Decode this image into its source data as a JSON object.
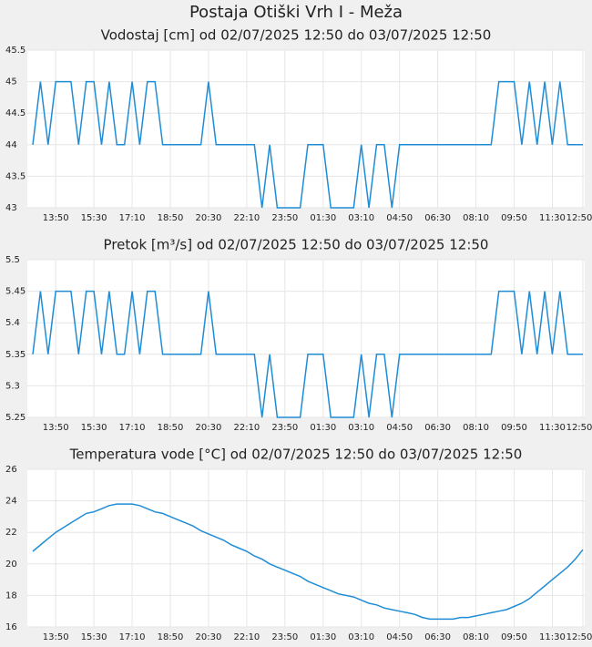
{
  "title": "Postaja Otiški Vrh I - Meža",
  "chart_data": [
    {
      "type": "line",
      "title": "Vodostaj [cm] od 02/07/2025 12:50 do 03/07/2025 12:50",
      "color": "#1f8dd6",
      "grid": true,
      "categories": [
        null,
        null,
        null,
        "13:50",
        null,
        null,
        null,
        null,
        "15:30",
        null,
        null,
        null,
        null,
        "17:10",
        null,
        null,
        null,
        null,
        "18:50",
        null,
        null,
        null,
        null,
        "20:30",
        null,
        null,
        null,
        null,
        "22:10",
        null,
        null,
        null,
        null,
        "23:50",
        null,
        null,
        null,
        null,
        "01:30",
        null,
        null,
        null,
        null,
        "03:10",
        null,
        null,
        null,
        null,
        "04:50",
        null,
        null,
        null,
        null,
        "06:30",
        null,
        null,
        null,
        null,
        "08:10",
        null,
        null,
        null,
        null,
        "09:50",
        null,
        null,
        null,
        null,
        "11:30",
        null,
        null,
        null,
        "12:50"
      ],
      "values": [
        44,
        45,
        44,
        45,
        45,
        45,
        44,
        45,
        45,
        44,
        45,
        44,
        44,
        45,
        44,
        45,
        45,
        44,
        44,
        44,
        44,
        44,
        44,
        45,
        44,
        44,
        44,
        44,
        44,
        44,
        43,
        44,
        43,
        43,
        43,
        43,
        44,
        44,
        44,
        43,
        43,
        43,
        43,
        44,
        43,
        44,
        44,
        43,
        44,
        44,
        44,
        44,
        44,
        44,
        44,
        44,
        44,
        44,
        44,
        44,
        44,
        45,
        45,
        45,
        44,
        45,
        44,
        45,
        44,
        45,
        44,
        44,
        44
      ],
      "ylim": [
        43,
        45.5
      ],
      "yticks": [
        43,
        43.5,
        44,
        44.5,
        45,
        45.5
      ]
    },
    {
      "type": "line",
      "title": "Pretok [m³/s] od 02/07/2025 12:50 do 03/07/2025 12:50",
      "color": "#1f8dd6",
      "grid": true,
      "categories": [
        null,
        null,
        null,
        "13:50",
        null,
        null,
        null,
        null,
        "15:30",
        null,
        null,
        null,
        null,
        "17:10",
        null,
        null,
        null,
        null,
        "18:50",
        null,
        null,
        null,
        null,
        "20:30",
        null,
        null,
        null,
        null,
        "22:10",
        null,
        null,
        null,
        null,
        "23:50",
        null,
        null,
        null,
        null,
        "01:30",
        null,
        null,
        null,
        null,
        "03:10",
        null,
        null,
        null,
        null,
        "04:50",
        null,
        null,
        null,
        null,
        "06:30",
        null,
        null,
        null,
        null,
        "08:10",
        null,
        null,
        null,
        null,
        "09:50",
        null,
        null,
        null,
        null,
        "11:30",
        null,
        null,
        null,
        "12:50"
      ],
      "values": [
        5.35,
        5.45,
        5.35,
        5.45,
        5.45,
        5.45,
        5.35,
        5.45,
        5.45,
        5.35,
        5.45,
        5.35,
        5.35,
        5.45,
        5.35,
        5.45,
        5.45,
        5.35,
        5.35,
        5.35,
        5.35,
        5.35,
        5.35,
        5.45,
        5.35,
        5.35,
        5.35,
        5.35,
        5.35,
        5.35,
        5.25,
        5.35,
        5.25,
        5.25,
        5.25,
        5.25,
        5.35,
        5.35,
        5.35,
        5.25,
        5.25,
        5.25,
        5.25,
        5.35,
        5.25,
        5.35,
        5.35,
        5.25,
        5.35,
        5.35,
        5.35,
        5.35,
        5.35,
        5.35,
        5.35,
        5.35,
        5.35,
        5.35,
        5.35,
        5.35,
        5.35,
        5.45,
        5.45,
        5.45,
        5.35,
        5.45,
        5.35,
        5.45,
        5.35,
        5.45,
        5.35,
        5.35,
        5.35
      ],
      "ylim": [
        5.25,
        5.5
      ],
      "yticks": [
        5.25,
        5.3,
        5.35,
        5.4,
        5.45,
        5.5
      ]
    },
    {
      "type": "line",
      "title": "Temperatura vode [°C] od 02/07/2025 12:50 do 03/07/2025 12:50",
      "color": "#1f8dd6",
      "grid": true,
      "categories": [
        null,
        null,
        null,
        "13:50",
        null,
        null,
        null,
        null,
        "15:30",
        null,
        null,
        null,
        null,
        "17:10",
        null,
        null,
        null,
        null,
        "18:50",
        null,
        null,
        null,
        null,
        "20:30",
        null,
        null,
        null,
        null,
        "22:10",
        null,
        null,
        null,
        null,
        "23:50",
        null,
        null,
        null,
        null,
        "01:30",
        null,
        null,
        null,
        null,
        "03:10",
        null,
        null,
        null,
        null,
        "04:50",
        null,
        null,
        null,
        null,
        "06:30",
        null,
        null,
        null,
        null,
        "08:10",
        null,
        null,
        null,
        null,
        "09:50",
        null,
        null,
        null,
        null,
        "11:30",
        null,
        null,
        null,
        "12:50"
      ],
      "values": [
        20.8,
        21.2,
        21.6,
        22.0,
        22.3,
        22.6,
        22.9,
        23.2,
        23.3,
        23.5,
        23.7,
        23.8,
        23.8,
        23.8,
        23.7,
        23.5,
        23.3,
        23.2,
        23.0,
        22.8,
        22.6,
        22.4,
        22.1,
        21.9,
        21.7,
        21.5,
        21.2,
        21.0,
        20.8,
        20.5,
        20.3,
        20.0,
        19.8,
        19.6,
        19.4,
        19.2,
        18.9,
        18.7,
        18.5,
        18.3,
        18.1,
        18.0,
        17.9,
        17.7,
        17.5,
        17.4,
        17.2,
        17.1,
        17.0,
        16.9,
        16.8,
        16.6,
        16.5,
        16.5,
        16.5,
        16.5,
        16.6,
        16.6,
        16.7,
        16.8,
        16.9,
        17.0,
        17.1,
        17.3,
        17.5,
        17.8,
        18.2,
        18.6,
        19.0,
        19.4,
        19.8,
        20.3,
        20.9
      ],
      "ylim": [
        16,
        26
      ],
      "yticks": [
        16,
        18,
        20,
        22,
        24,
        26
      ]
    }
  ]
}
